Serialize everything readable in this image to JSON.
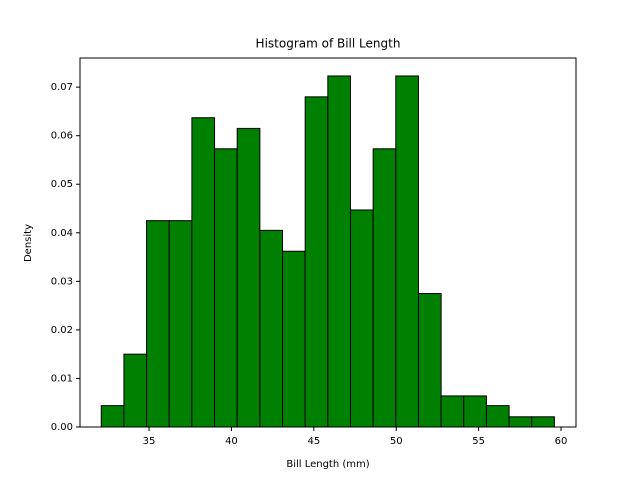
{
  "chart_data": {
    "type": "histogram",
    "title": "Histogram of Bill Length",
    "xlabel": "Bill Length (mm)",
    "ylabel": "Density",
    "bins": [
      32.1,
      33.475,
      34.85,
      36.225,
      37.6,
      38.975,
      40.35,
      41.725,
      43.1,
      44.475,
      45.85,
      47.225,
      48.6,
      49.975,
      51.35,
      52.725,
      54.1,
      55.475,
      56.85,
      58.225,
      59.6
    ],
    "values": [
      0.0044,
      0.015,
      0.0425,
      0.0425,
      0.0637,
      0.0573,
      0.0615,
      0.0405,
      0.0362,
      0.068,
      0.0723,
      0.0447,
      0.0573,
      0.0723,
      0.0275,
      0.0064,
      0.0064,
      0.0044,
      0.0021,
      0.0021
    ],
    "color": "#008000",
    "edgecolor": "#000000",
    "xlim": [
      30.81,
      60.91
    ],
    "ylim": [
      0,
      0.076
    ],
    "xticks": [
      35,
      40,
      45,
      50,
      55,
      60
    ],
    "yticks": [
      {
        "value": 0,
        "label": "0.00"
      },
      {
        "value": 0.01,
        "label": "0.01"
      },
      {
        "value": 0.02,
        "label": "0.02"
      },
      {
        "value": 0.03,
        "label": "0.03"
      },
      {
        "value": 0.04,
        "label": "0.04"
      },
      {
        "value": 0.05,
        "label": "0.05"
      },
      {
        "value": 0.06,
        "label": "0.06"
      },
      {
        "value": 0.07,
        "label": "0.07"
      }
    ]
  }
}
